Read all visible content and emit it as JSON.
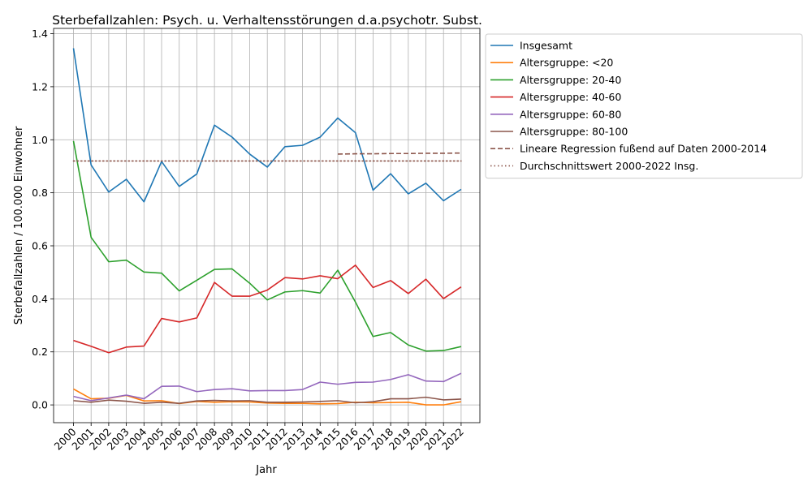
{
  "chart_data": {
    "type": "line",
    "title": "Sterbefallzahlen: Psych. u. Verhaltensstörungen d.a.psychotr. Subst.",
    "xlabel": "Jahr",
    "ylabel": "Sterbefallzahlen / 100.000 Einwohner",
    "ylim": [
      -0.067,
      1.42
    ],
    "yticks": [
      0.0,
      0.2,
      0.4,
      0.6,
      0.8,
      1.0,
      1.2,
      1.4
    ],
    "ytick_labels": [
      "0.0",
      "0.2",
      "0.4",
      "0.6",
      "0.8",
      "1.0",
      "1.2",
      "1.4"
    ],
    "grid": true,
    "legend_position": "outside-right-top",
    "x": [
      "2000",
      "2001",
      "2002",
      "2003",
      "2004",
      "2005",
      "2006",
      "2007",
      "2008",
      "2009",
      "2010",
      "2011",
      "2012",
      "2013",
      "2014",
      "2015",
      "2016",
      "2017",
      "2018",
      "2019",
      "2020",
      "2021",
      "2022"
    ],
    "series": [
      {
        "name": "Insgesamt",
        "color": "#1f77b4",
        "style": "solid",
        "values": [
          1.345,
          0.905,
          0.803,
          0.851,
          0.766,
          0.918,
          0.824,
          0.871,
          1.055,
          1.01,
          0.946,
          0.897,
          0.974,
          0.979,
          1.01,
          1.082,
          1.027,
          0.81,
          0.872,
          0.796,
          0.836,
          0.77,
          0.813
        ]
      },
      {
        "name": "Altersgruppe: <20",
        "color": "#ff7f0e",
        "style": "solid",
        "values": [
          0.06,
          0.023,
          0.025,
          0.036,
          0.015,
          0.016,
          0.005,
          0.013,
          0.01,
          0.012,
          0.011,
          0.007,
          0.006,
          0.006,
          0.004,
          0.005,
          0.01,
          0.008,
          0.009,
          0.01,
          0.0,
          0.0,
          0.012
        ]
      },
      {
        "name": "Altersgruppe: 20-40",
        "color": "#2ca02c",
        "style": "solid",
        "values": [
          0.995,
          0.632,
          0.54,
          0.546,
          0.501,
          0.497,
          0.43,
          0.47,
          0.511,
          0.513,
          0.459,
          0.396,
          0.426,
          0.431,
          0.422,
          0.508,
          0.388,
          0.258,
          0.273,
          0.226,
          0.203,
          0.205,
          0.22
        ]
      },
      {
        "name": "Altersgruppe: 40-60",
        "color": "#d62728",
        "style": "solid",
        "values": [
          0.243,
          0.221,
          0.197,
          0.218,
          0.222,
          0.326,
          0.313,
          0.328,
          0.462,
          0.41,
          0.41,
          0.433,
          0.48,
          0.475,
          0.487,
          0.476,
          0.527,
          0.443,
          0.469,
          0.42,
          0.474,
          0.401,
          0.445
        ]
      },
      {
        "name": "Altersgruppe: 60-80",
        "color": "#9467bd",
        "style": "solid",
        "values": [
          0.032,
          0.016,
          0.026,
          0.037,
          0.023,
          0.07,
          0.071,
          0.05,
          0.058,
          0.061,
          0.053,
          0.054,
          0.054,
          0.058,
          0.086,
          0.078,
          0.085,
          0.086,
          0.096,
          0.114,
          0.09,
          0.088,
          0.119
        ]
      },
      {
        "name": "Altersgruppe: 80-100",
        "color": "#8c564b",
        "style": "solid",
        "values": [
          0.016,
          0.01,
          0.018,
          0.014,
          0.006,
          0.01,
          0.006,
          0.015,
          0.017,
          0.015,
          0.016,
          0.01,
          0.01,
          0.011,
          0.013,
          0.016,
          0.008,
          0.012,
          0.023,
          0.023,
          0.029,
          0.019,
          0.022
        ]
      },
      {
        "name": "Lineare Regression fußend auf Daten 2000-2014",
        "color": "#8c564b",
        "style": "dashed",
        "x": [
          "2015",
          "2016",
          "2017",
          "2018",
          "2019",
          "2020",
          "2021",
          "2022"
        ],
        "values": [
          0.946,
          0.947,
          0.947,
          0.948,
          0.948,
          0.949,
          0.949,
          0.95
        ]
      },
      {
        "name": "Durchschnittswert 2000-2022 Insg.",
        "color": "#8c564b",
        "style": "dotted",
        "x": [
          "2000",
          "2022"
        ],
        "values": [
          0.92,
          0.92
        ]
      }
    ]
  }
}
